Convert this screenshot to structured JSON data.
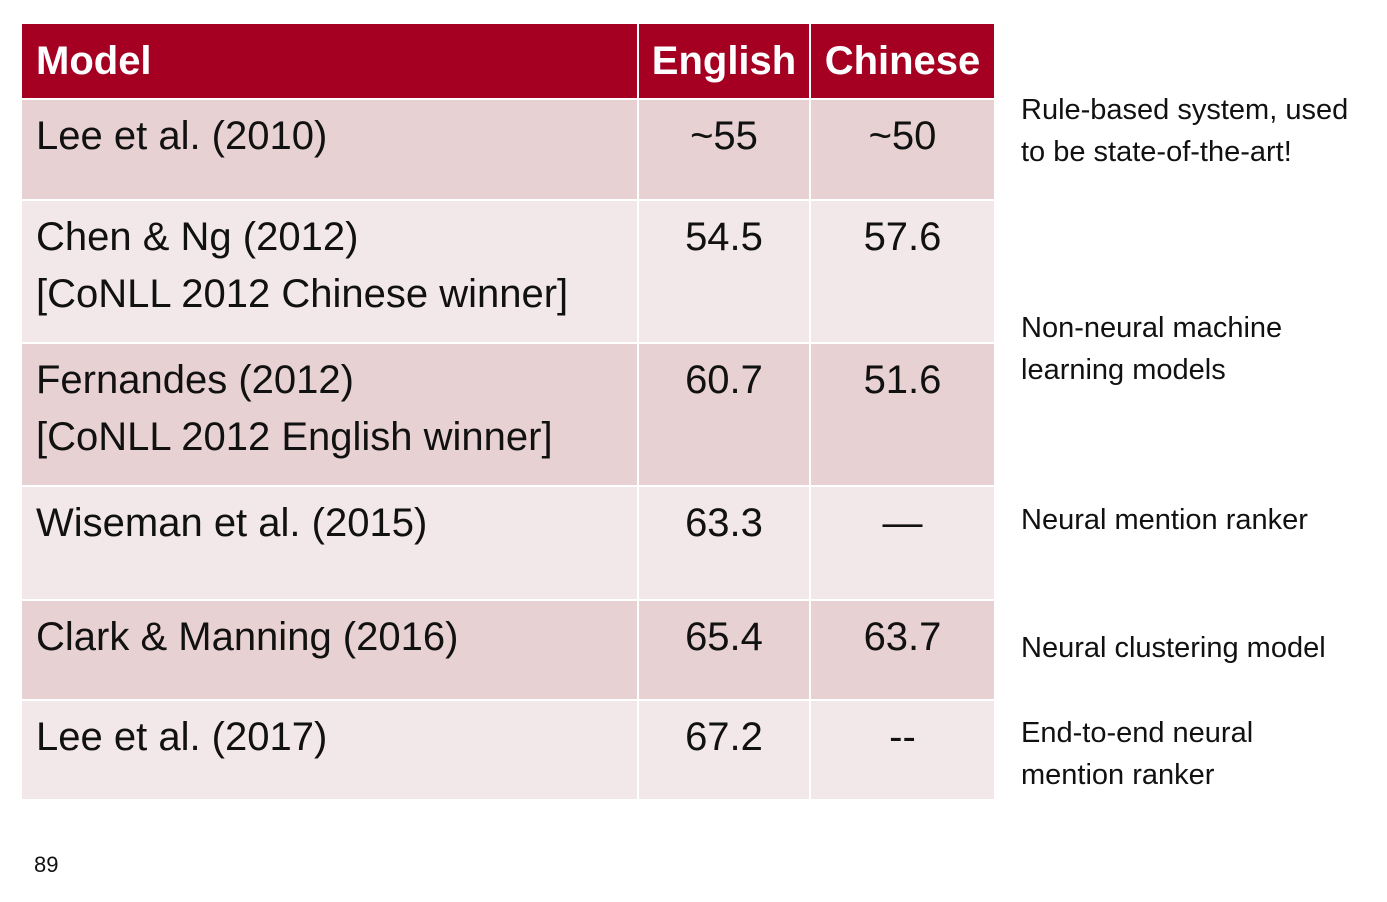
{
  "table": {
    "headers": {
      "model": "Model",
      "english": "English",
      "chinese": "Chinese"
    },
    "rows": [
      {
        "model": [
          "Lee et al. (2010)"
        ],
        "english": "~55",
        "chinese": "~50"
      },
      {
        "model": [
          "Chen & Ng (2012)",
          "[CoNLL 2012 Chinese winner]"
        ],
        "english": "54.5",
        "chinese": "57.6"
      },
      {
        "model": [
          "Fernandes (2012)",
          "[CoNLL 2012 English winner]"
        ],
        "english": "60.7",
        "chinese": "51.6"
      },
      {
        "model": [
          "Wiseman et al. (2015)"
        ],
        "english": "63.3",
        "chinese": "—"
      },
      {
        "model": [
          "Clark & Manning (2016)"
        ],
        "english": "65.4",
        "chinese": "63.7"
      },
      {
        "model": [
          "Lee et al. (2017)"
        ],
        "english": "67.2",
        "chinese": "--"
      }
    ]
  },
  "notes": [
    [
      "Rule-based system, used",
      "to be state-of-the-art!"
    ],
    [
      "Non-neural machine",
      "learning models"
    ],
    [
      "Neural mention ranker"
    ],
    [
      "Neural clustering model"
    ],
    [
      "End-to-end neural",
      "mention ranker"
    ]
  ],
  "page_number": "89",
  "colors": {
    "header_bg": "#a50021",
    "row_dark": "#e8d1d3",
    "row_light": "#f3e8e9"
  }
}
